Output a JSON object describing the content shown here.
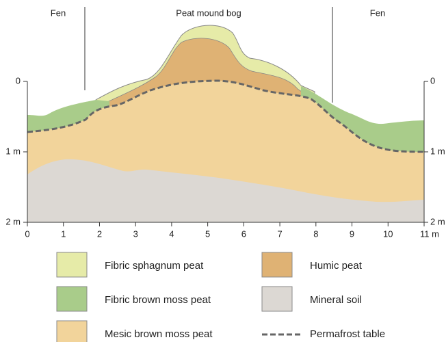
{
  "zones": [
    "Fen",
    "Peat mound bog",
    "Fen"
  ],
  "x_axis": [
    "0",
    "1",
    "2",
    "3",
    "4",
    "5",
    "6",
    "7",
    "8",
    "9",
    "10",
    "11 m"
  ],
  "left_axis": [
    "0",
    "1 m",
    "2 m"
  ],
  "right_axis": [
    "0",
    "1 m",
    "2 m"
  ],
  "legend": [
    "Fibric sphagnum peat",
    "Humic peat",
    "Fibric brown moss peat",
    "Mineral soil",
    "Mesic brown moss peat",
    "Permafrost table"
  ]
}
